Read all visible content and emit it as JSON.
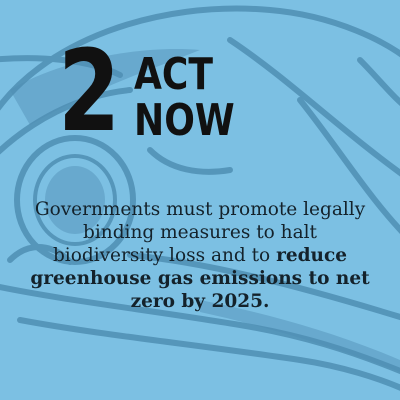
{
  "step_number": "2",
  "headline": {
    "line1": "ACT",
    "line2": "NOW"
  },
  "body": {
    "plain": "Governments must promote legally binding measures to halt biodiversity loss and to ",
    "bold": "reduce greenhouse gas emissions to net zero by 2025."
  },
  "colors": {
    "background": "#7cc0e3",
    "illustration": "#4f8fb4",
    "text": "#111111"
  },
  "background_illustration": "bird-skull-illustration"
}
